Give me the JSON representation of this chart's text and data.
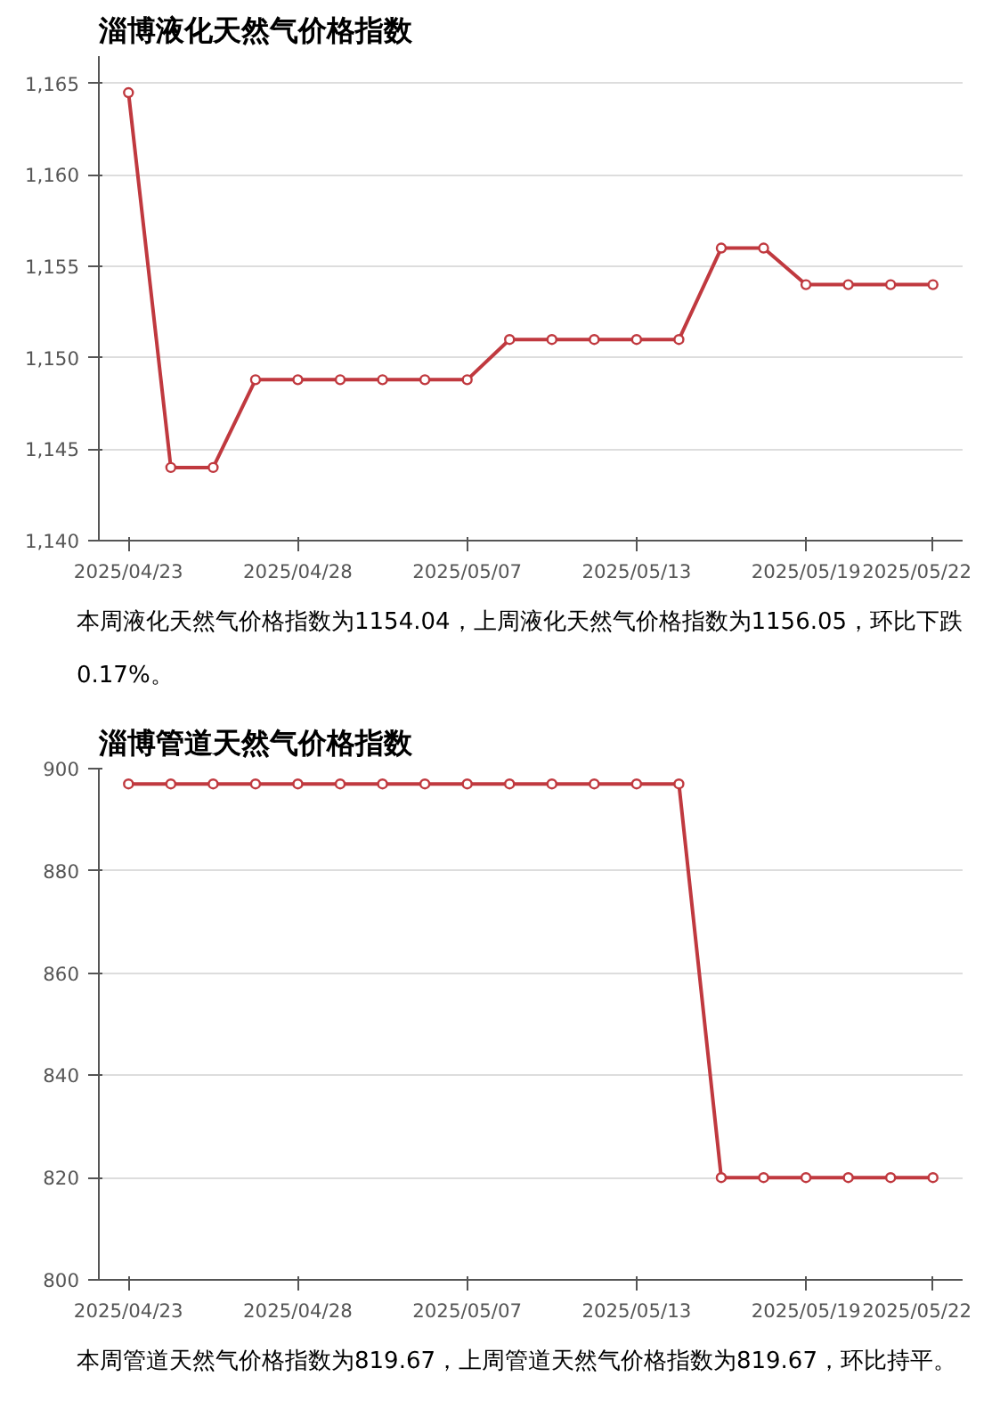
{
  "chart_data": [
    {
      "type": "line",
      "title": "淄博液化天然气价格指数",
      "categories": [
        "2025/04/23",
        null,
        null,
        null,
        "2025/04/28",
        null,
        null,
        null,
        "2025/05/07",
        null,
        null,
        null,
        "2025/05/13",
        null,
        null,
        null,
        "2025/05/19",
        null,
        null,
        "2025/05/22"
      ],
      "series": [
        {
          "color": "#c0393f",
          "values": [
            1164.5,
            1144,
            1144,
            1148.8,
            1148.8,
            1148.8,
            1148.8,
            1148.8,
            1148.8,
            1151,
            1151,
            1151,
            1151,
            1151,
            1156,
            1156,
            1154,
            1154,
            1154,
            1154
          ]
        }
      ],
      "ylim": [
        1140,
        1166.5
      ],
      "yticks": [
        {
          "value": 1140,
          "label": "1,140"
        },
        {
          "value": 1145,
          "label": "1,145"
        },
        {
          "value": 1150,
          "label": "1,150"
        },
        {
          "value": 1155,
          "label": "1,155"
        },
        {
          "value": 1160,
          "label": "1,160"
        },
        {
          "value": 1165,
          "label": "1,165"
        }
      ],
      "grid": "y",
      "marker": "circle",
      "line_style": "solid",
      "annotations": [
        "本周液化天然气价格指数为1154.04，上周液化天然气价格指数为1156.05，环比下跌0.17%。"
      ]
    },
    {
      "type": "line",
      "title": "淄博管道天然气价格指数",
      "categories": [
        "2025/04/23",
        null,
        null,
        null,
        "2025/04/28",
        null,
        null,
        null,
        "2025/05/07",
        null,
        null,
        null,
        "2025/05/13",
        null,
        null,
        null,
        "2025/05/19",
        null,
        null,
        "2025/05/22"
      ],
      "series": [
        {
          "color": "#c0393f",
          "values": [
            897,
            897,
            897,
            897,
            897,
            897,
            897,
            897,
            897,
            897,
            897,
            897,
            897,
            897,
            820,
            820,
            820,
            820,
            820,
            820
          ]
        }
      ],
      "ylim": [
        800,
        900
      ],
      "yticks": [
        800,
        820,
        840,
        860,
        880,
        900
      ],
      "grid": "y",
      "marker": "circle",
      "line_style": "solid",
      "annotations": [
        "本周管道天然气价格指数为819.67，上周管道天然气价格指数为819.67，环比持平。"
      ]
    }
  ]
}
